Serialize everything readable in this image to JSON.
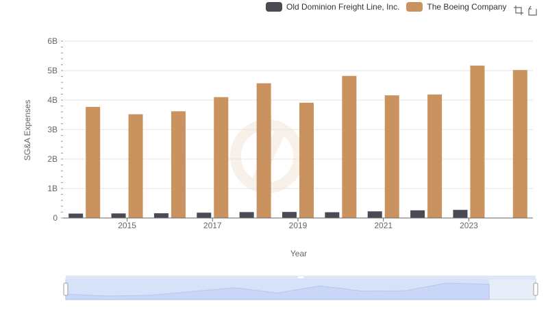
{
  "legend": {
    "items": [
      {
        "name": "Old Dominion Freight Line, Inc.",
        "color": "#4a4a55"
      },
      {
        "name": "The Boeing Company",
        "color": "#c9925e"
      }
    ]
  },
  "toolbox": {
    "icons": [
      "zoom-icon",
      "zoom-reset-icon"
    ]
  },
  "chart_data": {
    "type": "bar",
    "xlabel": "Year",
    "ylabel": "SG&A Expenses",
    "x_tick_labels": [
      "2015",
      "2017",
      "2019",
      "2021",
      "2023"
    ],
    "y_tick_labels": [
      "0",
      "1B",
      "2B",
      "3B",
      "4B",
      "5B",
      "6B"
    ],
    "ylim": [
      0,
      6000000000
    ],
    "categories": [
      "2014",
      "2015",
      "2016",
      "2017",
      "2018",
      "2019",
      "2020",
      "2021",
      "2022",
      "2023",
      "2024"
    ],
    "series": [
      {
        "name": "Old Dominion Freight Line, Inc.",
        "color": "#4a4a55",
        "values": [
          150000000,
          155000000,
          160000000,
          180000000,
          200000000,
          205000000,
          195000000,
          225000000,
          260000000,
          275000000,
          null
        ]
      },
      {
        "name": "The Boeing Company",
        "color": "#c9925e",
        "values": [
          3770000000,
          3520000000,
          3620000000,
          4100000000,
          4570000000,
          3910000000,
          4820000000,
          4160000000,
          4190000000,
          5170000000,
          5020000000
        ]
      }
    ],
    "grid": true,
    "legend_position": "top-right",
    "data_zoom": true
  }
}
